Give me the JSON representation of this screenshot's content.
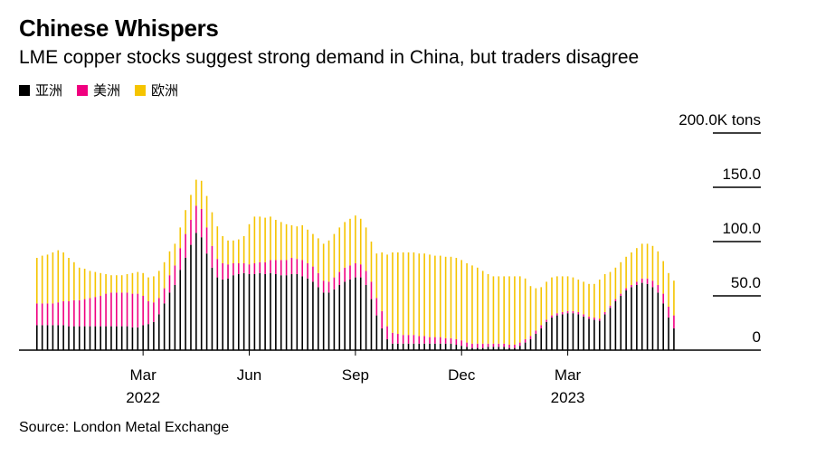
{
  "title": "Chinese Whispers",
  "subtitle": "LME copper stocks suggest strong demand in China, but traders disagree",
  "legend": [
    {
      "label": "亚洲",
      "color": "#000000",
      "icon": "square-swatch"
    },
    {
      "label": "美洲",
      "color": "#f0007f",
      "icon": "square-swatch"
    },
    {
      "label": "欧洲",
      "color": "#f5c400",
      "icon": "square-swatch"
    }
  ],
  "source": "Source: London Metal Exchange",
  "chart_data": {
    "type": "bar",
    "stacked": true,
    "title": "Chinese Whispers",
    "ylabel": "tons",
    "ylim": [
      0,
      200000
    ],
    "yticks": [
      {
        "value": 0,
        "label": "0"
      },
      {
        "value": 50000,
        "label": "50.0"
      },
      {
        "value": 100000,
        "label": "100.0"
      },
      {
        "value": 150000,
        "label": "150.0"
      },
      {
        "value": 200000,
        "label": "200.0K tons"
      }
    ],
    "xticks": [
      {
        "index": 20,
        "label": "Mar",
        "year": "2022"
      },
      {
        "index": 40,
        "label": "Jun",
        "year": ""
      },
      {
        "index": 60,
        "label": "Sep",
        "year": ""
      },
      {
        "index": 80,
        "label": "Dec",
        "year": ""
      },
      {
        "index": 100,
        "label": "Mar",
        "year": "2023"
      }
    ],
    "series": [
      {
        "name": "亚洲",
        "color": "#000000",
        "values": [
          23,
          23,
          23,
          23,
          23,
          23,
          22,
          22,
          22,
          22,
          22,
          22,
          22,
          22,
          22,
          22,
          22,
          22,
          21,
          21,
          23,
          24,
          26,
          33,
          43,
          53,
          60,
          74,
          85,
          97,
          108,
          104,
          89,
          76,
          67,
          65,
          66,
          69,
          70,
          71,
          70,
          70,
          71,
          70,
          71,
          70,
          69,
          69,
          70,
          70,
          68,
          66,
          63,
          58,
          53,
          53,
          56,
          60,
          63,
          65,
          67,
          67,
          60,
          47,
          32,
          20,
          10,
          6,
          6,
          6,
          6,
          6,
          6,
          6,
          6,
          6,
          6,
          6,
          6,
          5,
          4,
          3,
          2,
          2,
          2,
          3,
          3,
          3,
          3,
          2,
          2,
          4,
          7,
          10,
          15,
          20,
          26,
          30,
          32,
          33,
          34,
          34,
          33,
          31,
          29,
          28,
          27,
          33,
          39,
          45,
          50,
          55,
          58,
          60,
          62,
          61,
          58,
          53,
          43,
          30,
          20
        ]
      },
      {
        "name": "美洲",
        "color": "#f0007f",
        "values": [
          20,
          20,
          20,
          20,
          21,
          22,
          23,
          24,
          24,
          25,
          26,
          27,
          28,
          30,
          31,
          31,
          31,
          31,
          31,
          31,
          27,
          21,
          18,
          15,
          14,
          16,
          18,
          20,
          22,
          23,
          25,
          26,
          24,
          20,
          17,
          15,
          13,
          11,
          10,
          9,
          9,
          10,
          10,
          11,
          12,
          13,
          14,
          14,
          15,
          14,
          15,
          14,
          14,
          13,
          11,
          10,
          11,
          12,
          13,
          13,
          13,
          12,
          13,
          16,
          16,
          16,
          12,
          10,
          9,
          8,
          8,
          8,
          7,
          7,
          6,
          6,
          6,
          5,
          5,
          5,
          5,
          4,
          4,
          4,
          4,
          3,
          3,
          3,
          3,
          3,
          3,
          3,
          3,
          3,
          3,
          3,
          2,
          2,
          2,
          2,
          2,
          2,
          2,
          2,
          2,
          2,
          2,
          2,
          2,
          2,
          2,
          2,
          2,
          3,
          4,
          5,
          6,
          7,
          9,
          10,
          12
        ]
      },
      {
        "name": "欧洲",
        "color": "#f5c400",
        "values": [
          42,
          44,
          45,
          47,
          48,
          45,
          40,
          35,
          30,
          28,
          25,
          23,
          21,
          18,
          16,
          16,
          16,
          17,
          19,
          20,
          21,
          22,
          24,
          25,
          24,
          22,
          20,
          19,
          22,
          23,
          24,
          26,
          29,
          31,
          30,
          25,
          22,
          21,
          22,
          25,
          37,
          43,
          42,
          41,
          40,
          37,
          35,
          33,
          30,
          30,
          32,
          31,
          30,
          32,
          34,
          38,
          40,
          41,
          42,
          43,
          44,
          42,
          40,
          37,
          41,
          54,
          66,
          74,
          75,
          76,
          76,
          76,
          76,
          76,
          76,
          75,
          75,
          75,
          75,
          75,
          74,
          73,
          72,
          70,
          67,
          64,
          62,
          62,
          62,
          63,
          63,
          61,
          56,
          46,
          39,
          35,
          35,
          35,
          34,
          33,
          32,
          31,
          30,
          30,
          30,
          31,
          36,
          35,
          31,
          29,
          29,
          29,
          30,
          31,
          32,
          32,
          32,
          31,
          30,
          31,
          32
        ]
      }
    ]
  }
}
